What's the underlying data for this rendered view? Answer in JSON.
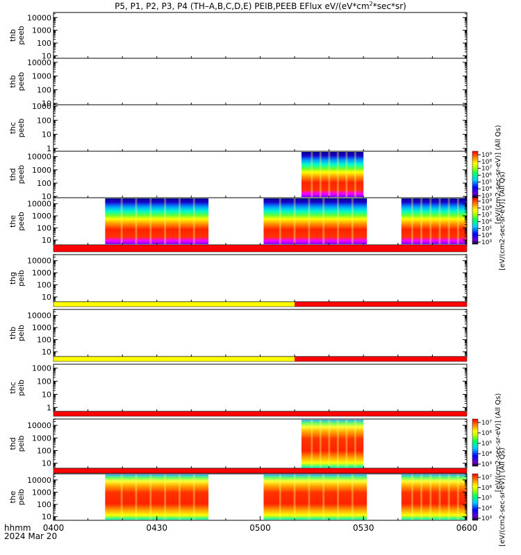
{
  "title": "P5, P1, P2, P3, P4 (TH–A,B,C,D,E) PEIB,PEEB EFlux eV/(eV*cm",
  "title_sup": "2",
  "title_tail": "*sec*sr)",
  "x_label": "hhmm",
  "date_label": "2024 Mar 20",
  "colors": {
    "flag_red": "#ff0000",
    "flag_yellow": "#ffff00",
    "background": "#ffffff",
    "axes": "#000000"
  },
  "chart_data": {
    "type": "heatmap",
    "x_unit": "hhmm",
    "x_range": [
      "0400",
      "0600"
    ],
    "x_ticks": [
      "0400",
      "0430",
      "0500",
      "0530",
      "0600"
    ],
    "panels": [
      {
        "probe": "thb",
        "product": "peeb",
        "label1": "thb",
        "label2": "peeb",
        "y_ticks": [
          "10000",
          "1000",
          "100",
          "10"
        ],
        "log_ylim": [
          0.8,
          4.4
        ],
        "bands": [],
        "flag_below": null
      },
      {
        "probe": "thb",
        "product": "peeb",
        "label1": "thb",
        "label2": "peeb",
        "y_ticks": [
          "10000",
          "1000",
          "100",
          "10"
        ],
        "log_ylim": [
          0.9,
          4.3
        ],
        "bands": [],
        "flag_below": null
      },
      {
        "probe": "thc",
        "product": "peeb",
        "label1": "thc",
        "label2": "peeb",
        "y_ticks": [
          "1000",
          "100",
          "10",
          "1"
        ],
        "log_ylim": [
          -0.2,
          3.1
        ],
        "bands": [],
        "flag_below": null
      },
      {
        "probe": "thd",
        "product": "peeb",
        "label1": "thd",
        "label2": "peeb",
        "y_ticks": [
          "10000",
          "1000",
          "100",
          "10"
        ],
        "log_ylim": [
          0.9,
          4.4
        ],
        "bands": [
          [
            "0512",
            "0530"
          ]
        ],
        "flag_below": null
      },
      {
        "probe": "the",
        "product": "peeb",
        "label1": "the",
        "label2": "peeb",
        "y_ticks": [
          "10000",
          "1000",
          "100",
          "10"
        ],
        "log_ylim": [
          0.6,
          4.5
        ],
        "bands": [
          [
            "0415",
            "0445"
          ],
          [
            "0501",
            "0531"
          ],
          [
            "0541",
            "0600"
          ]
        ],
        "flag_below": [
          {
            "from": "0400",
            "to": "0600",
            "color": "red"
          }
        ]
      },
      {
        "probe": "thg",
        "product": "peib",
        "label1": "thg",
        "label2": "peib",
        "y_ticks": [
          "10000",
          "1000",
          "100",
          "10"
        ],
        "log_ylim": [
          0.6,
          4.5
        ],
        "bands": [],
        "flag_below": [
          {
            "from": "0400",
            "to": "0510",
            "color": "yellow"
          },
          {
            "from": "0510",
            "to": "0600",
            "color": "red"
          }
        ]
      },
      {
        "probe": "thb",
        "product": "peib",
        "label1": "thb",
        "label2": "peib",
        "y_ticks": [
          "10000",
          "1000",
          "100",
          "10"
        ],
        "log_ylim": [
          0.6,
          4.5
        ],
        "bands": [],
        "flag_below": [
          {
            "from": "0400",
            "to": "0510",
            "color": "yellow"
          },
          {
            "from": "0510",
            "to": "0600",
            "color": "red"
          }
        ]
      },
      {
        "probe": "thc",
        "product": "peib",
        "label1": "thc",
        "label2": "peib",
        "y_ticks": [
          "1000",
          "100",
          "10",
          "1"
        ],
        "log_ylim": [
          -0.3,
          3.3
        ],
        "bands": [],
        "flag_below": [
          {
            "from": "0400",
            "to": "0600",
            "color": "red"
          }
        ]
      },
      {
        "probe": "thd",
        "product": "peib",
        "label1": "thd",
        "label2": "peib",
        "y_ticks": [
          "10000",
          "1000",
          "100",
          "10"
        ],
        "log_ylim": [
          0.6,
          4.5
        ],
        "bands": [
          [
            "0512",
            "0530"
          ]
        ],
        "flag_below": [
          {
            "from": "0400",
            "to": "0600",
            "color": "red"
          }
        ]
      },
      {
        "probe": "the",
        "product": "peib",
        "label1": "the",
        "label2": "peib",
        "y_ticks": [
          "10000",
          "1000",
          "100",
          "10"
        ],
        "log_ylim": [
          0.7,
          4.5
        ],
        "bands": [
          [
            "0415",
            "0445"
          ],
          [
            "0501",
            "0531"
          ],
          [
            "0541",
            "0600"
          ]
        ],
        "flag_below": null
      }
    ],
    "colorbars": [
      {
        "label": "[eV/(cm2-sec-sr-eV)] (All Qs)",
        "ticks": [
          "10⁹",
          "10⁸",
          "10⁷",
          "10⁶",
          "10⁵",
          "10⁴",
          "10³"
        ]
      },
      {
        "label": "[eV/(cm2-sec-sr-eV)] (All Qs)",
        "ticks": [
          "10⁹",
          "10⁸",
          "10⁷",
          "10⁶",
          "10⁵",
          "10⁴",
          "10³"
        ]
      },
      {
        "label": "[eV/(cm2-sec-sr-eV)] (All Qs)",
        "ticks": [
          "10⁷",
          "10⁶",
          "10⁵",
          "10⁴",
          "10³"
        ]
      },
      {
        "label": "[eV/(cm2-sec-sr-eV)] (All Qs)",
        "ticks": [
          "10⁷",
          "10⁶",
          "10⁵",
          "10⁴",
          "10³"
        ]
      }
    ]
  }
}
